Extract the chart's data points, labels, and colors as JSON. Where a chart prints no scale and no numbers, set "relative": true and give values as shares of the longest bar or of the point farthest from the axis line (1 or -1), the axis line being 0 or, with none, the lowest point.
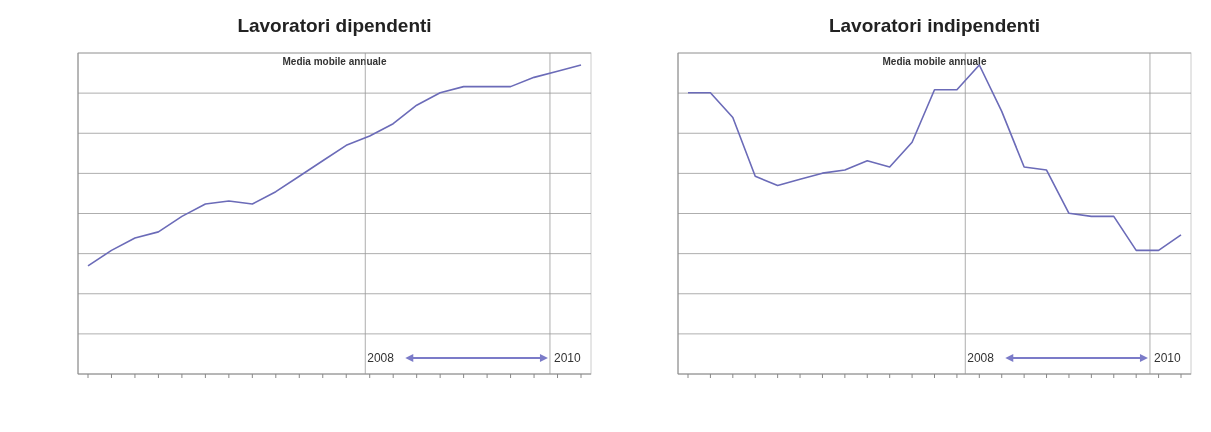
{
  "chart_data": [
    {
      "type": "line",
      "title": "Lavoratori dipendenti",
      "subtitle": "Media mobile annuale",
      "relative": true,
      "grid": "y",
      "categories": [
        null,
        null,
        null,
        null,
        null,
        null,
        null,
        null,
        null,
        null,
        null,
        null,
        null,
        null,
        null,
        null,
        null,
        null,
        null,
        null,
        null,
        null
      ],
      "series": [
        {
          "color": "#6b6bb8",
          "values": [
            0.35,
            0.4,
            0.44,
            0.46,
            0.51,
            0.55,
            0.56,
            0.55,
            0.59,
            0.64,
            0.69,
            0.74,
            0.77,
            0.81,
            0.87,
            0.91,
            0.93,
            0.93,
            0.93,
            0.96,
            0.98,
            1
          ]
        }
      ],
      "annotations": [
        "2008",
        "2010"
      ]
    },
    {
      "type": "line",
      "title": "Lavoratori indipendenti",
      "subtitle": "Media mobile annuale",
      "relative": true,
      "grid": "y",
      "categories": [
        null,
        null,
        null,
        null,
        null,
        null,
        null,
        null,
        null,
        null,
        null,
        null,
        null,
        null,
        null,
        null,
        null,
        null,
        null,
        null,
        null,
        null,
        null
      ],
      "series": [
        {
          "color": "#6b6bb8",
          "values": [
            0.91,
            0.91,
            0.83,
            0.64,
            0.61,
            0.63,
            0.65,
            0.66,
            0.69,
            0.67,
            0.75,
            0.92,
            0.92,
            1,
            0.85,
            0.67,
            0.66,
            0.52,
            0.51,
            0.51,
            0.4,
            0.4,
            0.45
          ]
        }
      ],
      "annotations": [
        "2008",
        "2010"
      ]
    }
  ]
}
